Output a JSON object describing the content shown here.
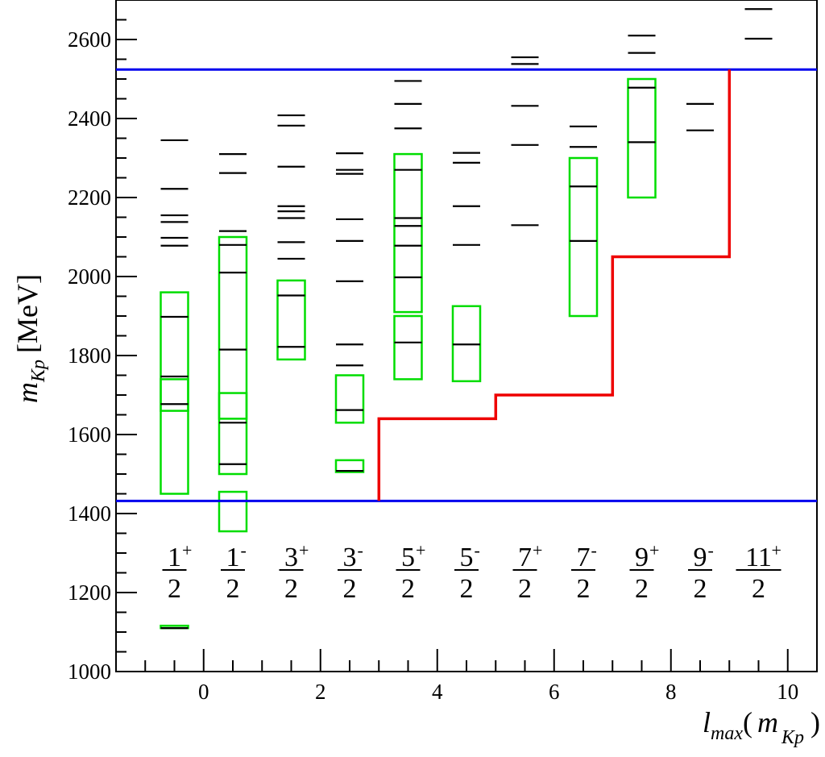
{
  "chart_data": {
    "type": "scatter",
    "title": "",
    "xlabel": {
      "main": "l",
      "sub": "max",
      "open": "(",
      "mvar": "m",
      "msub": "Kp",
      "close": ")"
    },
    "ylabel": {
      "main": "m",
      "sub": "Kp",
      "unit": "[MeV]"
    },
    "xlim": [
      -1.5,
      10.5
    ],
    "ylim": [
      1000,
      2700
    ],
    "x_ticks": [
      "0",
      "2",
      "4",
      "6",
      "8",
      "10"
    ],
    "y_ticks": [
      "1000",
      "1200",
      "1400",
      "1600",
      "1800",
      "2000",
      "2200",
      "2400",
      "2600"
    ],
    "colors": {
      "levels": "#000000",
      "boxes": "#00dd00",
      "threshold": "#0000ee",
      "lmax": "#ee0000"
    },
    "thresholds": [
      1432,
      2524
    ],
    "lmax_curve": [
      [
        3,
        1432
      ],
      [
        3,
        1640
      ],
      [
        5,
        1640
      ],
      [
        5,
        1700
      ],
      [
        7,
        1700
      ],
      [
        7,
        2050
      ],
      [
        9,
        2050
      ],
      [
        9,
        2524
      ]
    ],
    "columns": [
      {
        "x": -0.5,
        "jp_num": "1",
        "jp_parity": "+",
        "jp_den": "2",
        "levels": [
          1110,
          1677,
          1747,
          1898,
          2078,
          2098,
          2138,
          2155,
          2222,
          2345
        ],
        "boxes": [
          [
            1110,
            1116
          ],
          [
            1450,
            1960
          ],
          [
            1660,
            1740
          ]
        ]
      },
      {
        "x": 0.5,
        "jp_num": "1",
        "jp_parity": "-",
        "jp_den": "2",
        "levels": [
          1525,
          1630,
          1815,
          2010,
          2080,
          2115,
          2262,
          2310
        ],
        "boxes": [
          [
            1355,
            1455
          ],
          [
            1500,
            2100
          ],
          [
            1640,
            1705
          ]
        ]
      },
      {
        "x": 1.5,
        "jp_num": "3",
        "jp_parity": "+",
        "jp_den": "2",
        "levels": [
          1822,
          1952,
          2045,
          2087,
          2148,
          2165,
          2178,
          2278,
          2382,
          2408
        ],
        "boxes": [
          [
            1790,
            1990
          ]
        ]
      },
      {
        "x": 2.5,
        "jp_num": "3",
        "jp_parity": "-",
        "jp_den": "2",
        "levels": [
          1508,
          1662,
          1775,
          1828,
          1988,
          2090,
          2145,
          2260,
          2270,
          2312
        ],
        "boxes": [
          [
            1505,
            1535
          ],
          [
            1630,
            1750
          ]
        ]
      },
      {
        "x": 3.5,
        "jp_num": "5",
        "jp_parity": "+",
        "jp_den": "2",
        "levels": [
          1833,
          1998,
          2078,
          2128,
          2148,
          2270,
          2375,
          2437,
          2495
        ],
        "boxes": [
          [
            1740,
            1900
          ],
          [
            1910,
            2310
          ]
        ]
      },
      {
        "x": 4.5,
        "jp_num": "5",
        "jp_parity": "-",
        "jp_den": "2",
        "levels": [
          1828,
          2080,
          2178,
          2288,
          2313
        ],
        "boxes": [
          [
            1735,
            1925
          ]
        ]
      },
      {
        "x": 5.5,
        "jp_num": "7",
        "jp_parity": "+",
        "jp_den": "2",
        "levels": [
          2130,
          2333,
          2432,
          2538,
          2555
        ],
        "boxes": []
      },
      {
        "x": 6.5,
        "jp_num": "7",
        "jp_parity": "-",
        "jp_den": "2",
        "levels": [
          2090,
          2228,
          2328,
          2380
        ],
        "boxes": [
          [
            1900,
            2300
          ]
        ]
      },
      {
        "x": 7.5,
        "jp_num": "9",
        "jp_parity": "+",
        "jp_den": "2",
        "levels": [
          2340,
          2478,
          2566,
          2610
        ],
        "boxes": [
          [
            2200,
            2500
          ]
        ]
      },
      {
        "x": 8.5,
        "jp_num": "9",
        "jp_parity": "-",
        "jp_den": "2",
        "levels": [
          2370,
          2437
        ],
        "boxes": []
      },
      {
        "x": 9.5,
        "jp_num": "11",
        "jp_parity": "+",
        "jp_den": "2",
        "levels": [
          2602,
          2677
        ],
        "boxes": []
      }
    ]
  }
}
